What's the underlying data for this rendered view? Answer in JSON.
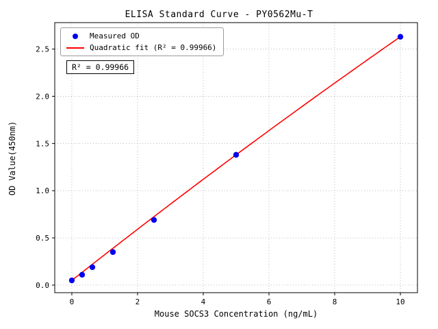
{
  "chart_data": {
    "type": "scatter",
    "title": "ELISA Standard Curve - PY0562Mu-T",
    "xlabel": "Mouse SOCS3 Concentration (ng/mL)",
    "ylabel": "OD Value(450nm)",
    "xlim": [
      -0.52,
      10.52
    ],
    "ylim": [
      -0.08,
      2.78
    ],
    "xticks": [
      0,
      2,
      4,
      6,
      8,
      10
    ],
    "yticks": [
      0.0,
      0.5,
      1.0,
      1.5,
      2.0,
      2.5
    ],
    "grid": true,
    "legend_position": "upper-left",
    "series": [
      {
        "name": "Measured OD",
        "type": "scatter",
        "color": "#0000ee",
        "x": [
          0,
          0.3125,
          0.625,
          1.25,
          2.5,
          5,
          10
        ],
        "y": [
          0.05,
          0.11,
          0.19,
          0.35,
          0.69,
          1.38,
          2.63
        ]
      },
      {
        "name": "Quadratic fit (R² = 0.99966)",
        "type": "line",
        "color": "#ff0000",
        "fit": {
          "a": 0.05,
          "b": 0.274,
          "c": -0.0016,
          "x_range": [
            0,
            10
          ]
        }
      }
    ],
    "annotation": "R² = 0.99966"
  },
  "legend": {
    "measured_label": "Measured OD",
    "fit_label": "Quadratic fit (R² = 0.99966)"
  }
}
